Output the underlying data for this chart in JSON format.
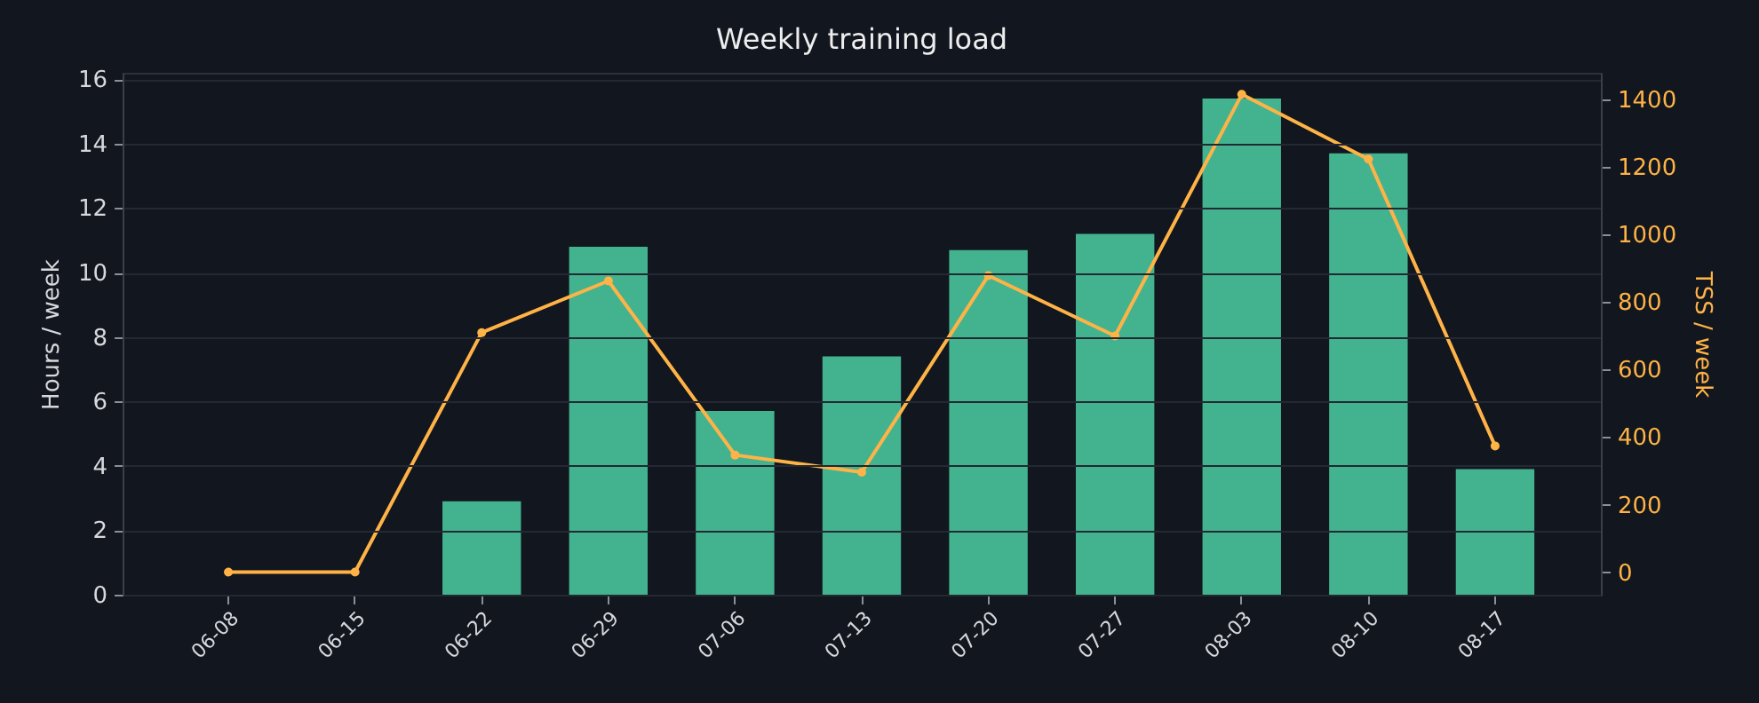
{
  "chart_data": {
    "type": "bar",
    "title": "Weekly training load",
    "categories": [
      "06-08",
      "06-15",
      "06-22",
      "06-29",
      "07-06",
      "07-13",
      "07-20",
      "07-27",
      "08-03",
      "08-10",
      "08-17"
    ],
    "series": [
      {
        "color": "#43b38f",
        "values": [
          0,
          0,
          2.9,
          10.8,
          5.7,
          7.4,
          10.7,
          11.2,
          15.4,
          13.7,
          3.9
        ]
      },
      {
        "type": "line",
        "axis": "y2",
        "color": "#ffb347",
        "marker": "circle",
        "values": [
          0,
          0,
          710,
          863,
          347,
          296,
          879,
          700,
          1416,
          1224,
          374
        ]
      }
    ],
    "ylabel": "Hours / week",
    "y2label": "TSS / week",
    "ylim": [
      0,
      16.2
    ],
    "yticks": [
      0,
      2,
      4,
      6,
      8,
      10,
      12,
      14,
      16
    ],
    "y2lim": [
      -67,
      1480
    ],
    "y2ticks": [
      0,
      200,
      400,
      600,
      800,
      1000,
      1200,
      1400
    ],
    "grid": "y"
  }
}
